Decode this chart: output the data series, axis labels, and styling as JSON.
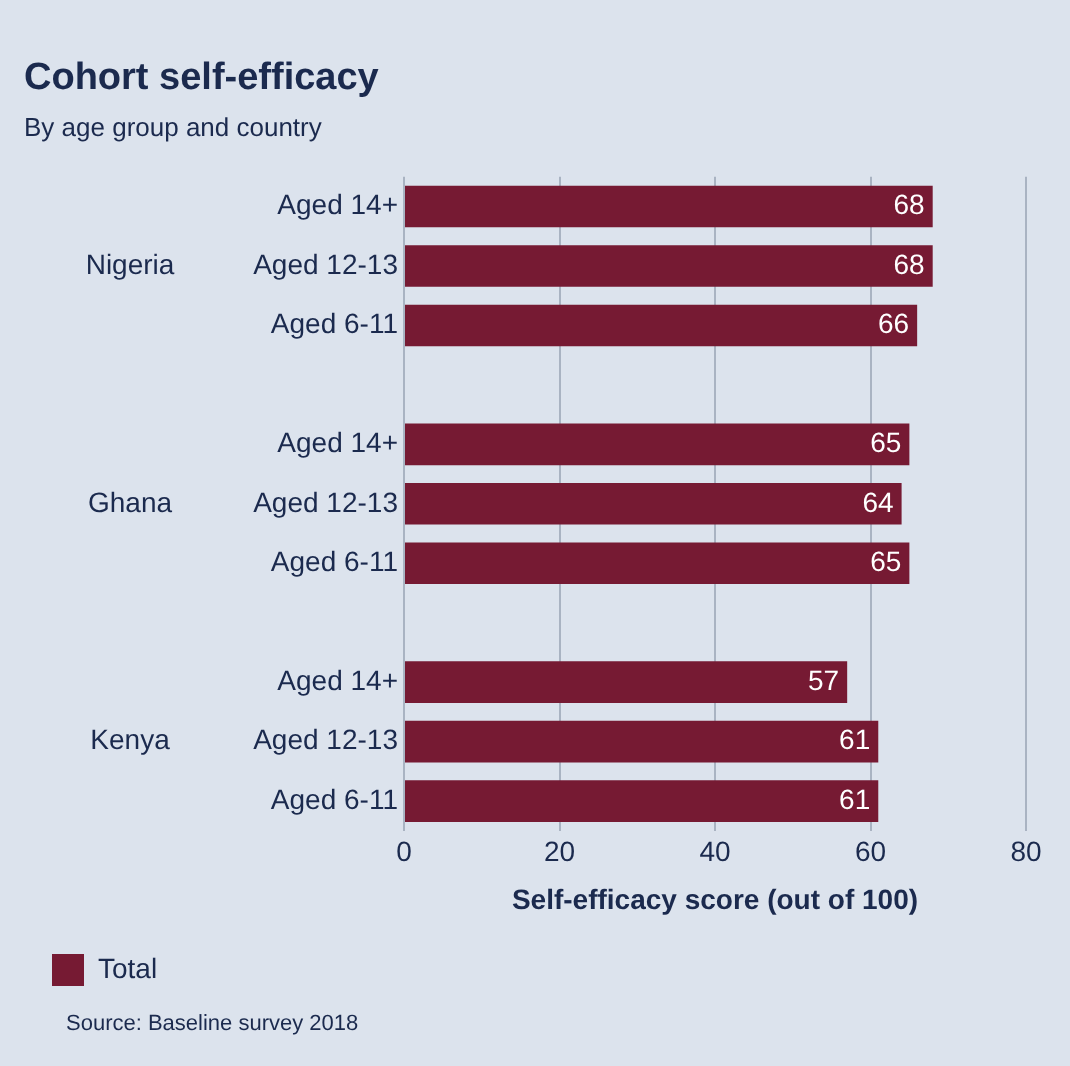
{
  "chart_data": {
    "type": "bar",
    "orientation": "horizontal",
    "title": "Cohort self-efficacy",
    "subtitle": "By age group and country",
    "xlabel": "Self-efficacy score (out of 100)",
    "categories": [
      "Aged 14+",
      "Aged 12-13",
      "Aged 6-11",
      null,
      "Aged 14+",
      "Aged 12-13",
      "Aged 6-11",
      null,
      "Aged 14+",
      "Aged 12-13",
      "Aged 6-11"
    ],
    "series": [
      {
        "name": "Total",
        "color": "#761a33",
        "values": [
          68,
          68,
          66,
          null,
          65,
          64,
          65,
          null,
          57,
          61,
          61
        ]
      }
    ],
    "xlim": [
      0,
      80
    ],
    "xticks": [
      0,
      20,
      40,
      60,
      80
    ],
    "grid": "x",
    "legend": "bottom left",
    "data_labels": true,
    "annotations": [
      "Nigeria",
      "Ghana",
      "Kenya",
      "Source: Baseline survey 2018"
    ]
  }
}
